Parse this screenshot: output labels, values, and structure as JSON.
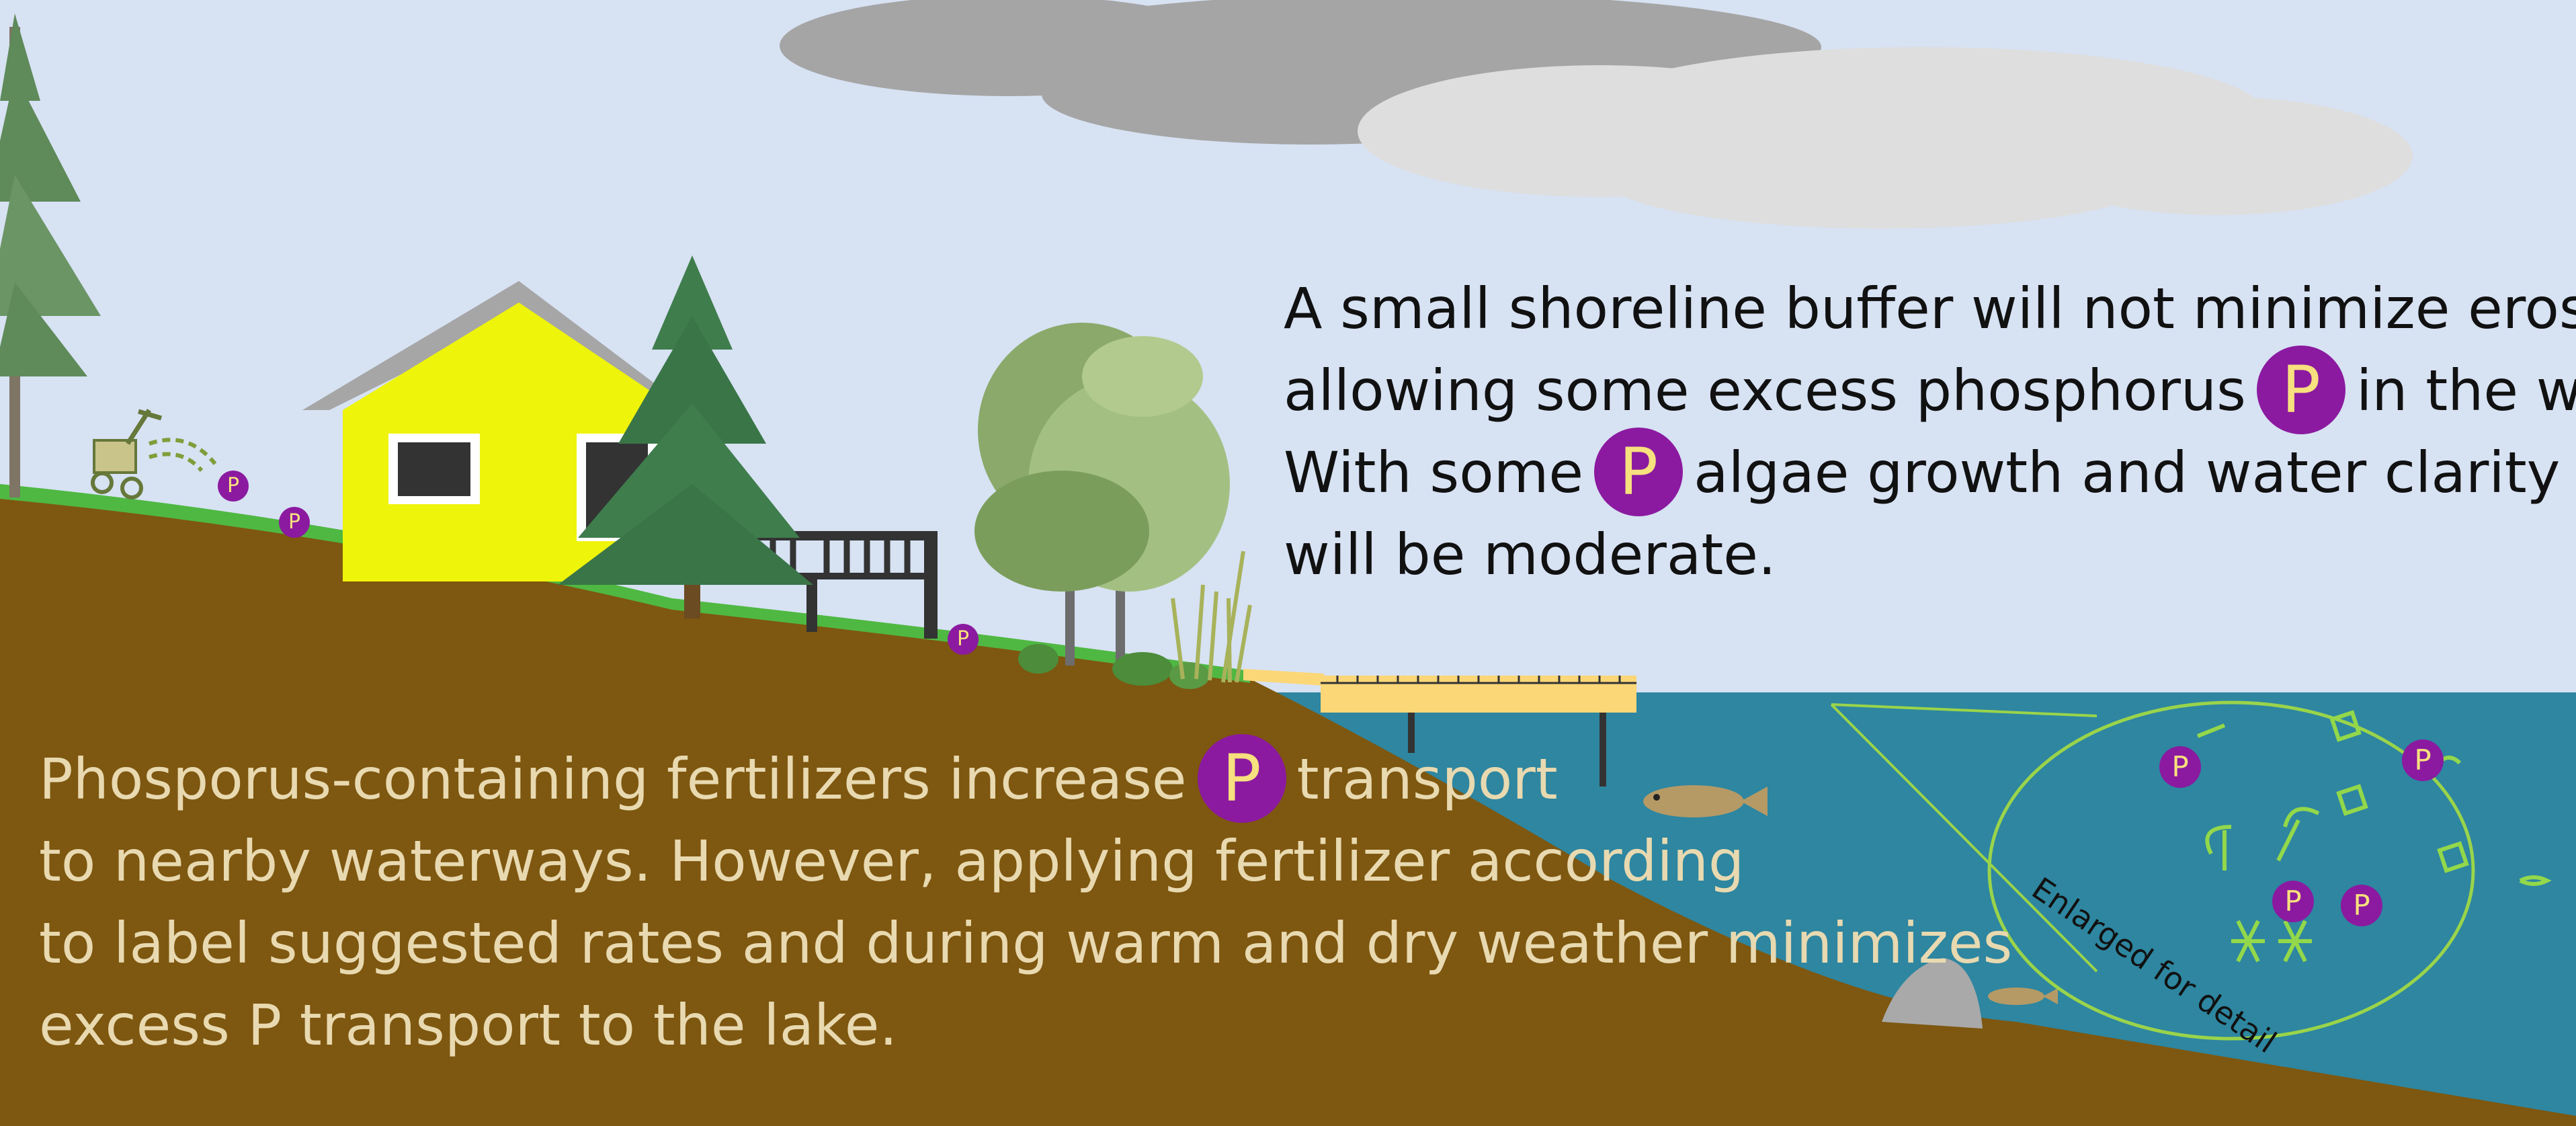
{
  "text_top": {
    "line1": "A small shoreline buffer will not minimize erosion,",
    "line2_a": "allowing some excess phosphorus",
    "line2_b": "in the water.",
    "line3_a": "With some",
    "line3_b": "algae growth and water clarity",
    "line4": "will be moderate."
  },
  "text_bottom": {
    "line1_a": "Phosporus-containing fertilizers increase",
    "line1_b": "transport",
    "line2": "to nearby waterways. However, applying fertilizer according",
    "line3": "to label suggested rates and during warm and dry weather minimizes",
    "line4": "excess P transport to the lake."
  },
  "phosphorus_symbol": "P",
  "enlarged_label": "Enlarged for detail",
  "colors": {
    "sky": "#d7e2f3",
    "soil": "#7e5710",
    "grass": "#4fb842",
    "water": "#2e86a0",
    "house": "#eef40a",
    "phosphorus_badge": "#8b1aa0",
    "phosphorus_letter": "#f7e07e",
    "dock": "#fbd777",
    "algae": "#93d84a"
  },
  "icons": [
    "cloud-dark",
    "cloud-light",
    "house",
    "deck",
    "dock",
    "pine-tree",
    "deciduous-tree",
    "fertilizer-spreader",
    "fish",
    "rock",
    "reeds",
    "algae"
  ]
}
